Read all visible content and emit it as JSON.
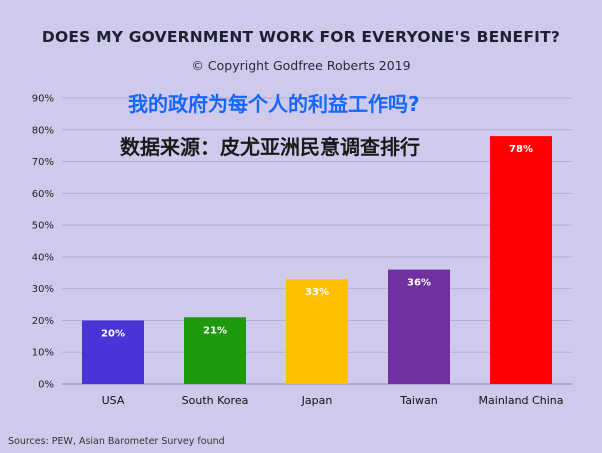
{
  "header": {
    "title": "DOES MY GOVERNMENT WORK FOR EVERYONE'S BENEFIT?",
    "copyright": "© Copyright Godfree Roberts 2019",
    "overlay_title_cn": "我的政府为每个人的利益工作吗?",
    "overlay_source_cn": "数据来源：皮尤亚洲民意调查排行"
  },
  "footer": {
    "sources": "Sources: PEW, Asian Barometer Survey found"
  },
  "chart_data": {
    "type": "bar",
    "title": "DOES MY GOVERNMENT WORK FOR EVERYONE'S BENEFIT?",
    "categories": [
      "USA",
      "South Korea",
      "Japan",
      "Taiwan",
      "Mainland China"
    ],
    "values": [
      20,
      21,
      33,
      36,
      78
    ],
    "data_labels": [
      "20%",
      "21%",
      "33%",
      "36%",
      "78%"
    ],
    "colors": [
      "#4a34d8",
      "#1f9a10",
      "#ffc000",
      "#7030a0",
      "#ff0000"
    ],
    "ylim": [
      0,
      90
    ],
    "yticks": [
      0,
      10,
      20,
      30,
      40,
      50,
      60,
      70,
      80,
      90
    ],
    "ytick_labels": [
      "0%",
      "10%",
      "20%",
      "30%",
      "40%",
      "50%",
      "60%",
      "70%",
      "80%",
      "90%"
    ],
    "xlabel": "",
    "ylabel": "",
    "grid": true,
    "legend": "none"
  }
}
